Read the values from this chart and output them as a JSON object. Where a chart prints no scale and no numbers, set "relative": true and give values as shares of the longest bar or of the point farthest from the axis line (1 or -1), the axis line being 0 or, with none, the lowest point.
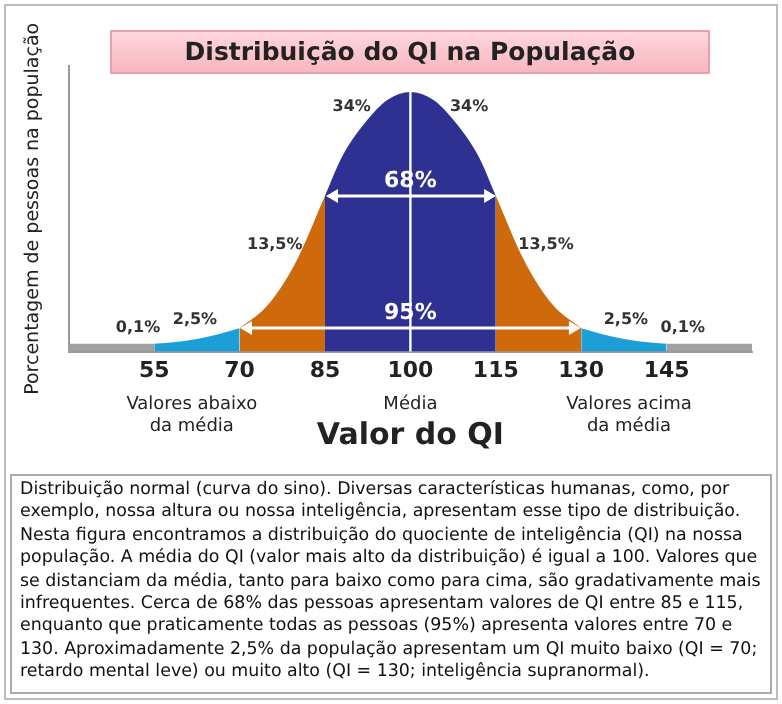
{
  "chart_data": {
    "type": "area",
    "title": "Distribuição do QI na População",
    "xlabel": "Valor do QI",
    "ylabel": "Porcentagem de pessoas na população",
    "relative": true,
    "legend": false,
    "marker": "none",
    "grid": false,
    "xlim": [
      40,
      160
    ],
    "xticks": [
      55,
      70,
      85,
      100,
      115,
      130,
      145
    ],
    "series": [
      {
        "color": "#a0a0a0",
        "x": [
          40,
          55
        ],
        "values": [
          0.03,
          0.03
        ]
      },
      {
        "color": "#1b9fd6",
        "x": [
          55,
          60,
          65,
          70
        ],
        "values": [
          0.03,
          0.04,
          0.06,
          0.09
        ]
      },
      {
        "color": "#cf6a0c",
        "x": [
          70,
          75,
          80,
          85
        ],
        "values": [
          0.09,
          0.18,
          0.35,
          0.6
        ]
      },
      {
        "color": "#2e3192",
        "x": [
          85,
          88,
          92,
          96,
          100,
          104,
          108,
          112,
          115
        ],
        "values": [
          0.6,
          0.75,
          0.88,
          0.97,
          1,
          0.97,
          0.88,
          0.75,
          0.6
        ]
      },
      {
        "color": "#cf6a0c",
        "x": [
          115,
          120,
          125,
          130
        ],
        "values": [
          0.6,
          0.35,
          0.18,
          0.09
        ]
      },
      {
        "color": "#1b9fd6",
        "x": [
          130,
          135,
          140,
          145
        ],
        "values": [
          0.09,
          0.06,
          0.04,
          0.03
        ]
      },
      {
        "color": "#a0a0a0",
        "x": [
          145,
          160
        ],
        "values": [
          0.03,
          0.03
        ]
      }
    ],
    "ref_lines": [
      {
        "axis": "x",
        "value": 100,
        "label": "Média",
        "color": "#ffffff"
      }
    ],
    "annotations": [
      {
        "text": "0,1%",
        "x": 55,
        "y": 0.03
      },
      {
        "text": "2,5%",
        "x": 65,
        "y": 0.06
      },
      {
        "text": "13,5%",
        "x": 80,
        "y": 0.35
      },
      {
        "text": "34%",
        "x": 92,
        "y": 0.88
      },
      {
        "text": "34%",
        "x": 108,
        "y": 0.88
      },
      {
        "text": "13,5%",
        "x": 120,
        "y": 0.35
      },
      {
        "text": "2,5%",
        "x": 135,
        "y": 0.06
      },
      {
        "text": "0,1%",
        "x": 145,
        "y": 0.03
      },
      {
        "text": "68%",
        "x": 100,
        "y": 0.6
      },
      {
        "text": "95%",
        "x": 100,
        "y": 0.09
      },
      "Valores abaixo da média",
      "Valores acima da média",
      "Distribuição normal (curva do sino). Diversas características humanas, como, por exemplo, nossa altura ou nossa inteligência, apresentam esse tipo de distribuição. Nesta figura encontramos a distribuição do quociente de inteligência (QI) na nossa população. A média do QI (valor mais alto da distribuição) é igual a 100. Valores que se distanciam da média, tanto para baixo como para cima, são gradativamente mais infrequentes. Cerca de 68% das pessoas apresentam valores de QI entre 85 e 115, enquanto que praticamente todas as pessoas (95%) apresenta valores entre 70 e 130.  Aproximadamente 2,5% da população apresentam um QI muito baixo (QI = 70; retardo mental leve) ou muito alto (QI = 130; inteligência supranormal)."
    ]
  }
}
